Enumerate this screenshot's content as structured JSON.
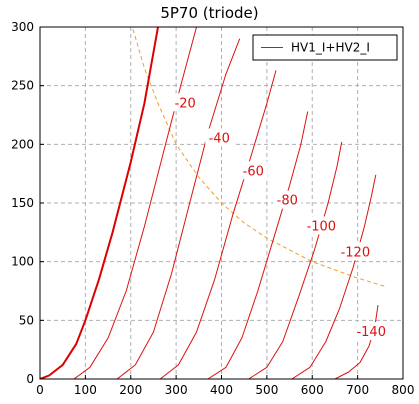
{
  "title": "5P70 (triode)",
  "legend": {
    "label": "HV1_I+HV2_I",
    "line_color": "#dd1111"
  },
  "chart_data": {
    "type": "line",
    "title": "5P70 (triode)",
    "xlabel": "",
    "ylabel": "",
    "xlim": [
      0,
      800
    ],
    "ylim": [
      0,
      300
    ],
    "x_ticks": [
      "0",
      "100",
      "200",
      "300",
      "400",
      "500",
      "600",
      "700",
      "800"
    ],
    "y_ticks": [
      "0",
      "50",
      "100",
      "150",
      "200",
      "250",
      "300"
    ],
    "grid": true,
    "legend_position": "top-right",
    "colors": {
      "primary_curve": "#dd0000",
      "curves": "#dd1111",
      "dissipation": "#f0a020",
      "grid": "#b0b0b0"
    },
    "series": [
      {
        "name": "HV1_I+HV2_I",
        "label": "",
        "emphasis": true,
        "points": [
          [
            0,
            0
          ],
          [
            20,
            3
          ],
          [
            50,
            12
          ],
          [
            80,
            30
          ],
          [
            100,
            50
          ],
          [
            130,
            85
          ],
          [
            160,
            125
          ],
          [
            200,
            185
          ],
          [
            230,
            235
          ],
          [
            260,
            300
          ]
        ]
      },
      {
        "name": "",
        "label": "-20",
        "label_at": [
          320,
          235
        ],
        "points": [
          [
            75,
            0
          ],
          [
            110,
            10
          ],
          [
            150,
            35
          ],
          [
            190,
            75
          ],
          [
            230,
            130
          ],
          [
            270,
            190
          ],
          [
            310,
            250
          ],
          [
            345,
            300
          ]
        ]
      },
      {
        "name": "",
        "label": "-40",
        "label_at": [
          395,
          205
        ],
        "points": [
          [
            170,
            0
          ],
          [
            210,
            12
          ],
          [
            250,
            40
          ],
          [
            290,
            90
          ],
          [
            330,
            150
          ],
          [
            370,
            210
          ],
          [
            410,
            260
          ],
          [
            440,
            290
          ]
        ]
      },
      {
        "name": "",
        "label": "-60",
        "label_at": [
          470,
          177
        ],
        "points": [
          [
            265,
            0
          ],
          [
            305,
            12
          ],
          [
            345,
            40
          ],
          [
            385,
            85
          ],
          [
            425,
            140
          ],
          [
            465,
            190
          ],
          [
            500,
            235
          ],
          [
            520,
            263
          ]
        ]
      },
      {
        "name": "",
        "label": "-80",
        "label_at": [
          545,
          152
        ],
        "points": [
          [
            370,
            0
          ],
          [
            410,
            10
          ],
          [
            445,
            35
          ],
          [
            480,
            75
          ],
          [
            515,
            120
          ],
          [
            550,
            165
          ],
          [
            575,
            200
          ],
          [
            590,
            228
          ]
        ]
      },
      {
        "name": "",
        "label": "-100",
        "label_at": [
          620,
          130
        ],
        "points": [
          [
            460,
            0
          ],
          [
            500,
            10
          ],
          [
            535,
            32
          ],
          [
            570,
            70
          ],
          [
            605,
            110
          ],
          [
            635,
            150
          ],
          [
            655,
            182
          ],
          [
            665,
            202
          ]
        ]
      },
      {
        "name": "",
        "label": "-120",
        "label_at": [
          695,
          108
        ],
        "points": [
          [
            555,
            0
          ],
          [
            595,
            10
          ],
          [
            630,
            32
          ],
          [
            660,
            60
          ],
          [
            690,
            95
          ],
          [
            715,
            130
          ],
          [
            730,
            155
          ],
          [
            740,
            174
          ]
        ]
      },
      {
        "name": "",
        "label": "-140",
        "label_at": [
          730,
          40
        ],
        "points": [
          [
            650,
            0
          ],
          [
            680,
            6
          ],
          [
            705,
            14
          ],
          [
            725,
            28
          ],
          [
            738,
            45
          ],
          [
            745,
            63
          ]
        ]
      }
    ],
    "dissipation_curve": {
      "style": "dashed",
      "points": [
        [
          205,
          298
        ],
        [
          230,
          265
        ],
        [
          260,
          235
        ],
        [
          300,
          200
        ],
        [
          350,
          172
        ],
        [
          400,
          150
        ],
        [
          450,
          133
        ],
        [
          500,
          120
        ],
        [
          550,
          110
        ],
        [
          600,
          100
        ],
        [
          650,
          93
        ],
        [
          700,
          86
        ],
        [
          760,
          79
        ]
      ]
    }
  }
}
